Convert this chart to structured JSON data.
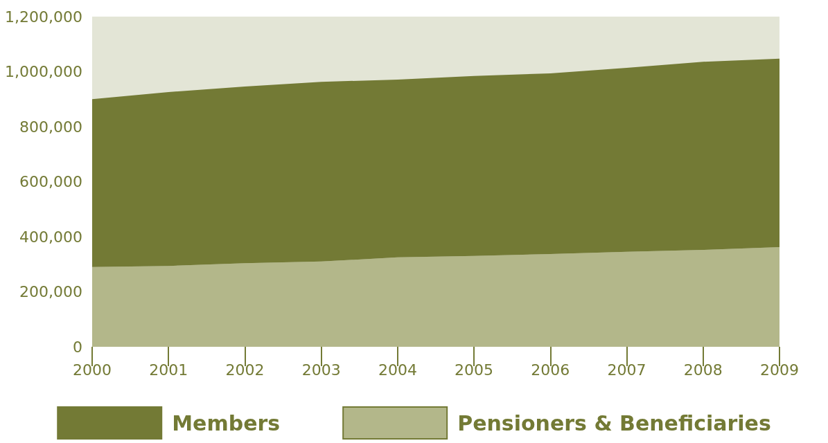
{
  "chart_data": {
    "type": "area",
    "stacked": true,
    "categories": [
      "2000",
      "2001",
      "2002",
      "2003",
      "2004",
      "2005",
      "2006",
      "2007",
      "2008",
      "2009"
    ],
    "series": [
      {
        "name": "Pensioners & Beneficiaries",
        "color": "#b3b78a",
        "values": [
          290000,
          294000,
          304000,
          310000,
          325000,
          330000,
          337000,
          345000,
          352000,
          362000
        ]
      },
      {
        "name": "Members",
        "color": "#737a35",
        "values": [
          610000,
          632000,
          642000,
          653000,
          646000,
          654000,
          657000,
          669000,
          684000,
          685000
        ]
      }
    ],
    "ylim": [
      0,
      1200000
    ],
    "yticks": [
      {
        "value": 0,
        "label": "0"
      },
      {
        "value": 200000,
        "label": "200,000"
      },
      {
        "value": 400000,
        "label": "400,000"
      },
      {
        "value": 600000,
        "label": "600,000"
      },
      {
        "value": 800000,
        "label": "800,000"
      },
      {
        "value": 1000000,
        "label": "1,000,000"
      },
      {
        "value": 1200000,
        "label": "1,200,000"
      }
    ],
    "grid": false,
    "legend": "bottom",
    "marker": "none"
  }
}
